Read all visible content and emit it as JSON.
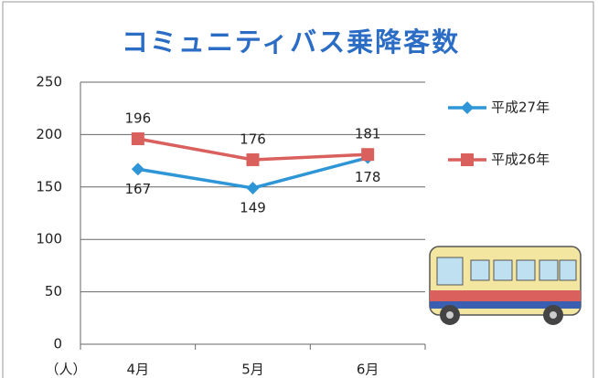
{
  "chart_data": {
    "type": "line",
    "title": "コミュニティバス乗降客数",
    "y_unit": "（人）",
    "categories": [
      "4月",
      "5月",
      "6月"
    ],
    "series": [
      {
        "name": "平成27年",
        "color": "#2e96d6",
        "marker": "diamond",
        "label_position": "below",
        "values": [
          167,
          149,
          178
        ]
      },
      {
        "name": "平成26年",
        "color": "#d9605d",
        "marker": "square",
        "label_position": "above",
        "values": [
          196,
          176,
          181
        ]
      }
    ],
    "ylim": [
      0,
      250
    ],
    "yticks": [
      0,
      50,
      100,
      150,
      200,
      250
    ],
    "grid": true,
    "legend": "right"
  }
}
